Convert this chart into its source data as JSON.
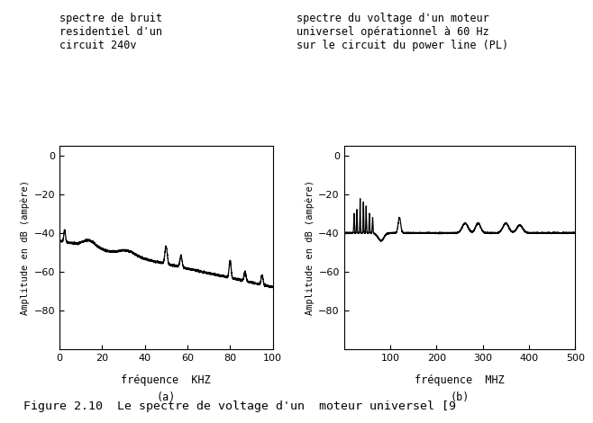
{
  "title_a": "spectre de bruit\nresidentiel d'un\ncircuit 240v",
  "title_b": "spectre du voltage d'un moteur\nuniversel opérationnel à 60 Hz\nsur le circuit du power line (PL)",
  "xlabel_a": "fréquence  KHZ",
  "xlabel_b": "fréquence  MHZ",
  "ylabel": "Amplitude en dB (ampère)",
  "label_a": "(a)",
  "label_b": "(b)",
  "xlim_a": [
    0,
    100
  ],
  "xlim_b": [
    0,
    500
  ],
  "ylim": [
    -100,
    5
  ],
  "yticks": [
    0,
    -20,
    -40,
    -60,
    -80
  ],
  "xticks_a": [
    0,
    20,
    40,
    60,
    80,
    100
  ],
  "xticks_b": [
    100,
    200,
    300,
    400,
    500
  ],
  "figure_caption": "Figure 2.10  Le spectre de voltage d'un  moteur universel [9",
  "bg_color": "#ffffff",
  "line_color": "#000000"
}
